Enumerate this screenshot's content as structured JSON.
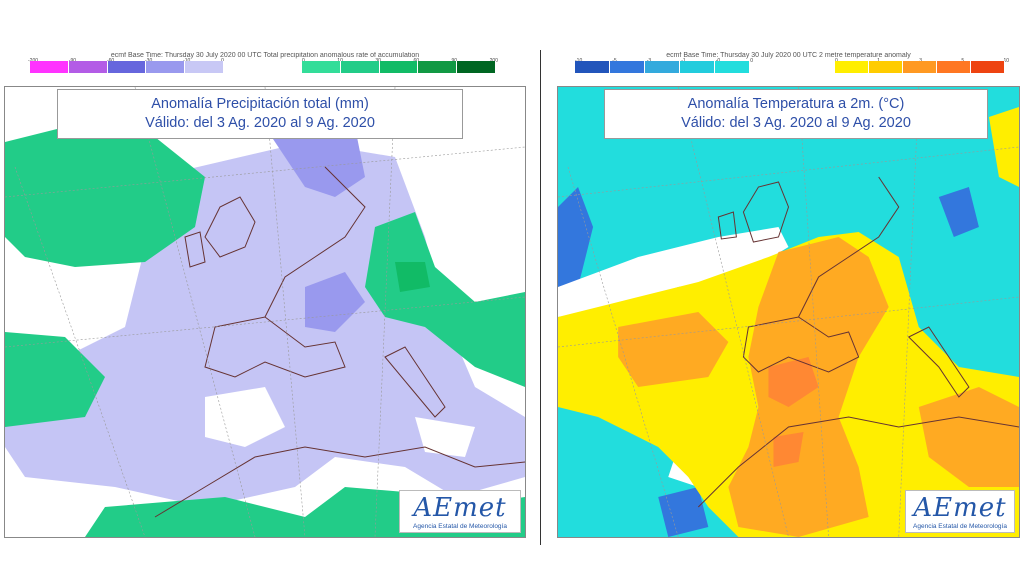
{
  "left": {
    "header": "ecmf Base Time: Thursday 30 July 2020 00 UTC Total precipitation anomalous rate of accumulation",
    "legend_neg_ticks": [
      "-200",
      "-90",
      "-60",
      "-30",
      "-10",
      "0"
    ],
    "legend_pos_ticks": [
      "0",
      "10",
      "30",
      "60",
      "90",
      "200"
    ],
    "legend_neg_colors": [
      "#ff33ff",
      "#b35ce6",
      "#6666dd",
      "#9999ee",
      "#c8c8f5"
    ],
    "legend_pos_colors": [
      "#33dd99",
      "#22cc88",
      "#11bb66",
      "#119944",
      "#006622"
    ],
    "title_line1": "Anomalía Precipitación total (mm)",
    "title_line2": "Válido: del 3 Ag. 2020 al 9 Ag. 2020",
    "logo": "AEmet",
    "logo_sub": "Agencia Estatal de Meteorología"
  },
  "right": {
    "header": "ecmf Base Time: Thursday 30 July 2020 00 UTC 2 metre temperature anomaly",
    "legend_neg_ticks": [
      "-10",
      "-5",
      "-3",
      "-1",
      "-0",
      "0"
    ],
    "legend_pos_ticks": [
      "0",
      "1",
      "3",
      "5",
      "10"
    ],
    "legend_neg_colors": [
      "#2255bb",
      "#3377dd",
      "#33aadd",
      "#22ccdd",
      "#22dddd"
    ],
    "legend_pos_colors": [
      "#ffee00",
      "#ffcc00",
      "#ff9922",
      "#ff7722",
      "#ee4411"
    ],
    "title_line1": "Anomalía Temperatura a 2m. (°C)",
    "title_line2": "Válido: del 3 Ag. 2020 al 9 Ag. 2020",
    "logo": "AEmet",
    "logo_sub": "Agencia Estatal de Meteorología"
  },
  "colors": {
    "title_text": "#2e4fa8",
    "precip_lavender": "#c5c5f5",
    "precip_purple": "#9999ee",
    "precip_green": "#22cc88",
    "temp_cyan": "#22dddd",
    "temp_yellow": "#ffee00",
    "temp_orange": "#ffaa22",
    "temp_deep_orange": "#ff8833",
    "temp_blue": "#3377dd"
  }
}
